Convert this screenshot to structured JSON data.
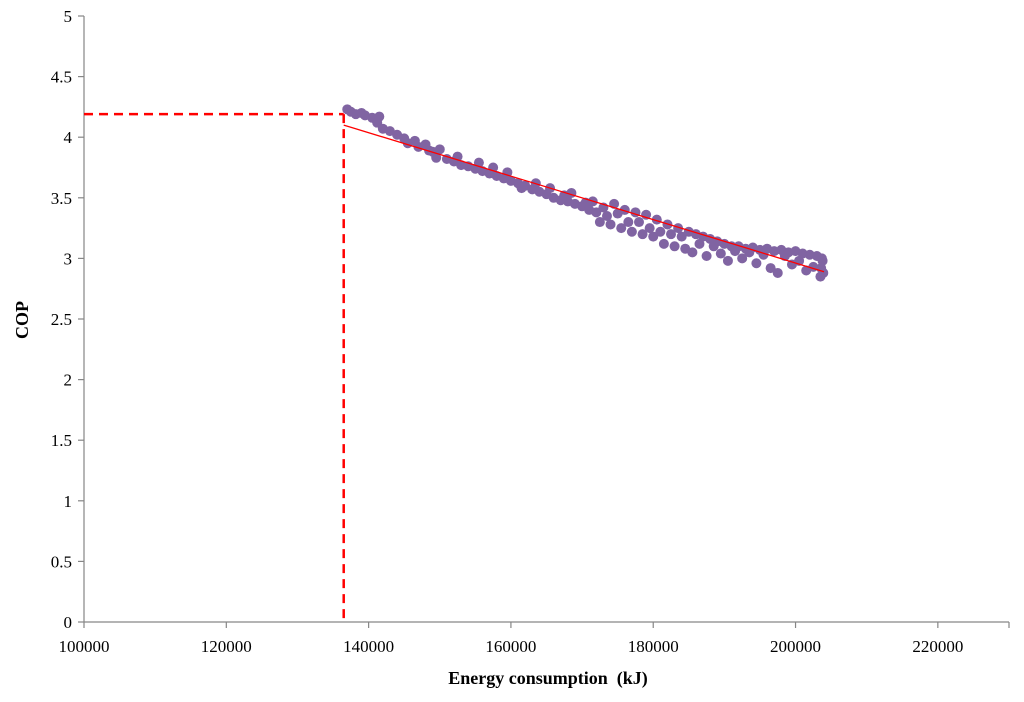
{
  "chart_data": {
    "type": "scatter",
    "title": "",
    "xlabel": "Energy consumption  (kJ)",
    "ylabel": "COP",
    "xlim": [
      100000,
      230000
    ],
    "ylim": [
      0,
      5
    ],
    "x_ticks": [
      100000,
      120000,
      140000,
      160000,
      180000,
      200000,
      220000
    ],
    "x_tick_labels": [
      "100000",
      "120000",
      "140000",
      "160000",
      "180000",
      "200000",
      "220000"
    ],
    "y_ticks": [
      0,
      0.5,
      1,
      1.5,
      2,
      2.5,
      3,
      3.5,
      4,
      4.5,
      5
    ],
    "y_tick_labels": [
      "0",
      "0.5",
      "1",
      "1.5",
      "2",
      "2.5",
      "3",
      "3.5",
      "4",
      "4.5",
      "5"
    ],
    "grid": false,
    "legend": "none",
    "series": [
      {
        "color": "#8064a2",
        "points": [
          [
            137000,
            4.23
          ],
          [
            137500,
            4.21
          ],
          [
            138200,
            4.19
          ],
          [
            139000,
            4.2
          ],
          [
            139500,
            4.18
          ],
          [
            140500,
            4.16
          ],
          [
            141500,
            4.17
          ],
          [
            141200,
            4.12
          ],
          [
            142000,
            4.07
          ],
          [
            143000,
            4.05
          ],
          [
            144000,
            4.02
          ],
          [
            145000,
            3.99
          ],
          [
            145500,
            3.95
          ],
          [
            146500,
            3.97
          ],
          [
            147000,
            3.92
          ],
          [
            148000,
            3.94
          ],
          [
            148500,
            3.89
          ],
          [
            149000,
            3.88
          ],
          [
            149500,
            3.83
          ],
          [
            150000,
            3.9
          ],
          [
            151000,
            3.82
          ],
          [
            152000,
            3.8
          ],
          [
            152500,
            3.84
          ],
          [
            153000,
            3.77
          ],
          [
            154000,
            3.76
          ],
          [
            155000,
            3.74
          ],
          [
            155500,
            3.79
          ],
          [
            156000,
            3.72
          ],
          [
            157000,
            3.7
          ],
          [
            157500,
            3.75
          ],
          [
            158000,
            3.68
          ],
          [
            159000,
            3.66
          ],
          [
            159500,
            3.71
          ],
          [
            160000,
            3.64
          ],
          [
            161000,
            3.62
          ],
          [
            161500,
            3.58
          ],
          [
            162000,
            3.6
          ],
          [
            163000,
            3.57
          ],
          [
            163500,
            3.62
          ],
          [
            164000,
            3.55
          ],
          [
            165000,
            3.53
          ],
          [
            165500,
            3.58
          ],
          [
            166000,
            3.5
          ],
          [
            167000,
            3.48
          ],
          [
            167500,
            3.52
          ],
          [
            168000,
            3.47
          ],
          [
            168500,
            3.54
          ],
          [
            169000,
            3.45
          ],
          [
            170000,
            3.43
          ],
          [
            170500,
            3.46
          ],
          [
            171000,
            3.4
          ],
          [
            171500,
            3.47
          ],
          [
            172000,
            3.38
          ],
          [
            172500,
            3.3
          ],
          [
            173000,
            3.42
          ],
          [
            173500,
            3.35
          ],
          [
            174000,
            3.28
          ],
          [
            174500,
            3.45
          ],
          [
            175000,
            3.37
          ],
          [
            175500,
            3.25
          ],
          [
            176000,
            3.4
          ],
          [
            176500,
            3.3
          ],
          [
            177000,
            3.22
          ],
          [
            177500,
            3.38
          ],
          [
            178000,
            3.3
          ],
          [
            178500,
            3.2
          ],
          [
            179000,
            3.36
          ],
          [
            179500,
            3.25
          ],
          [
            180000,
            3.18
          ],
          [
            180500,
            3.32
          ],
          [
            181000,
            3.22
          ],
          [
            181500,
            3.12
          ],
          [
            182000,
            3.28
          ],
          [
            182500,
            3.2
          ],
          [
            183000,
            3.1
          ],
          [
            183500,
            3.25
          ],
          [
            184000,
            3.18
          ],
          [
            184500,
            3.08
          ],
          [
            185000,
            3.22
          ],
          [
            185500,
            3.05
          ],
          [
            186000,
            3.2
          ],
          [
            186500,
            3.12
          ],
          [
            187000,
            3.18
          ],
          [
            187500,
            3.02
          ],
          [
            188000,
            3.16
          ],
          [
            188500,
            3.1
          ],
          [
            189000,
            3.14
          ],
          [
            189500,
            3.04
          ],
          [
            190000,
            3.12
          ],
          [
            190500,
            2.98
          ],
          [
            191000,
            3.1
          ],
          [
            191500,
            3.06
          ],
          [
            192000,
            3.1
          ],
          [
            192500,
            3.0
          ],
          [
            193000,
            3.08
          ],
          [
            193500,
            3.05
          ],
          [
            194000,
            3.09
          ],
          [
            194500,
            2.96
          ],
          [
            195000,
            3.07
          ],
          [
            195500,
            3.03
          ],
          [
            196000,
            3.08
          ],
          [
            196500,
            2.92
          ],
          [
            197000,
            3.06
          ],
          [
            197500,
            2.88
          ],
          [
            198000,
            3.07
          ],
          [
            198500,
            3.02
          ],
          [
            199000,
            3.05
          ],
          [
            199500,
            2.95
          ],
          [
            200000,
            3.06
          ],
          [
            200500,
            2.98
          ],
          [
            201000,
            3.04
          ],
          [
            201500,
            2.9
          ],
          [
            202000,
            3.03
          ],
          [
            202500,
            2.93
          ],
          [
            203000,
            3.02
          ],
          [
            203500,
            2.85
          ],
          [
            203800,
            2.98
          ],
          [
            203900,
            2.88
          ],
          [
            203700,
            3.0
          ],
          [
            203600,
            2.92
          ]
        ]
      }
    ],
    "trendline": {
      "color": "#ff0000",
      "points": [
        [
          136500,
          4.1
        ],
        [
          204000,
          2.89
        ]
      ]
    },
    "reference_lines": {
      "color": "#ff0000",
      "style": "dashed",
      "points": [
        [
          100000,
          4.19
        ],
        [
          136500,
          4.19
        ],
        [
          136500,
          0
        ]
      ]
    }
  }
}
